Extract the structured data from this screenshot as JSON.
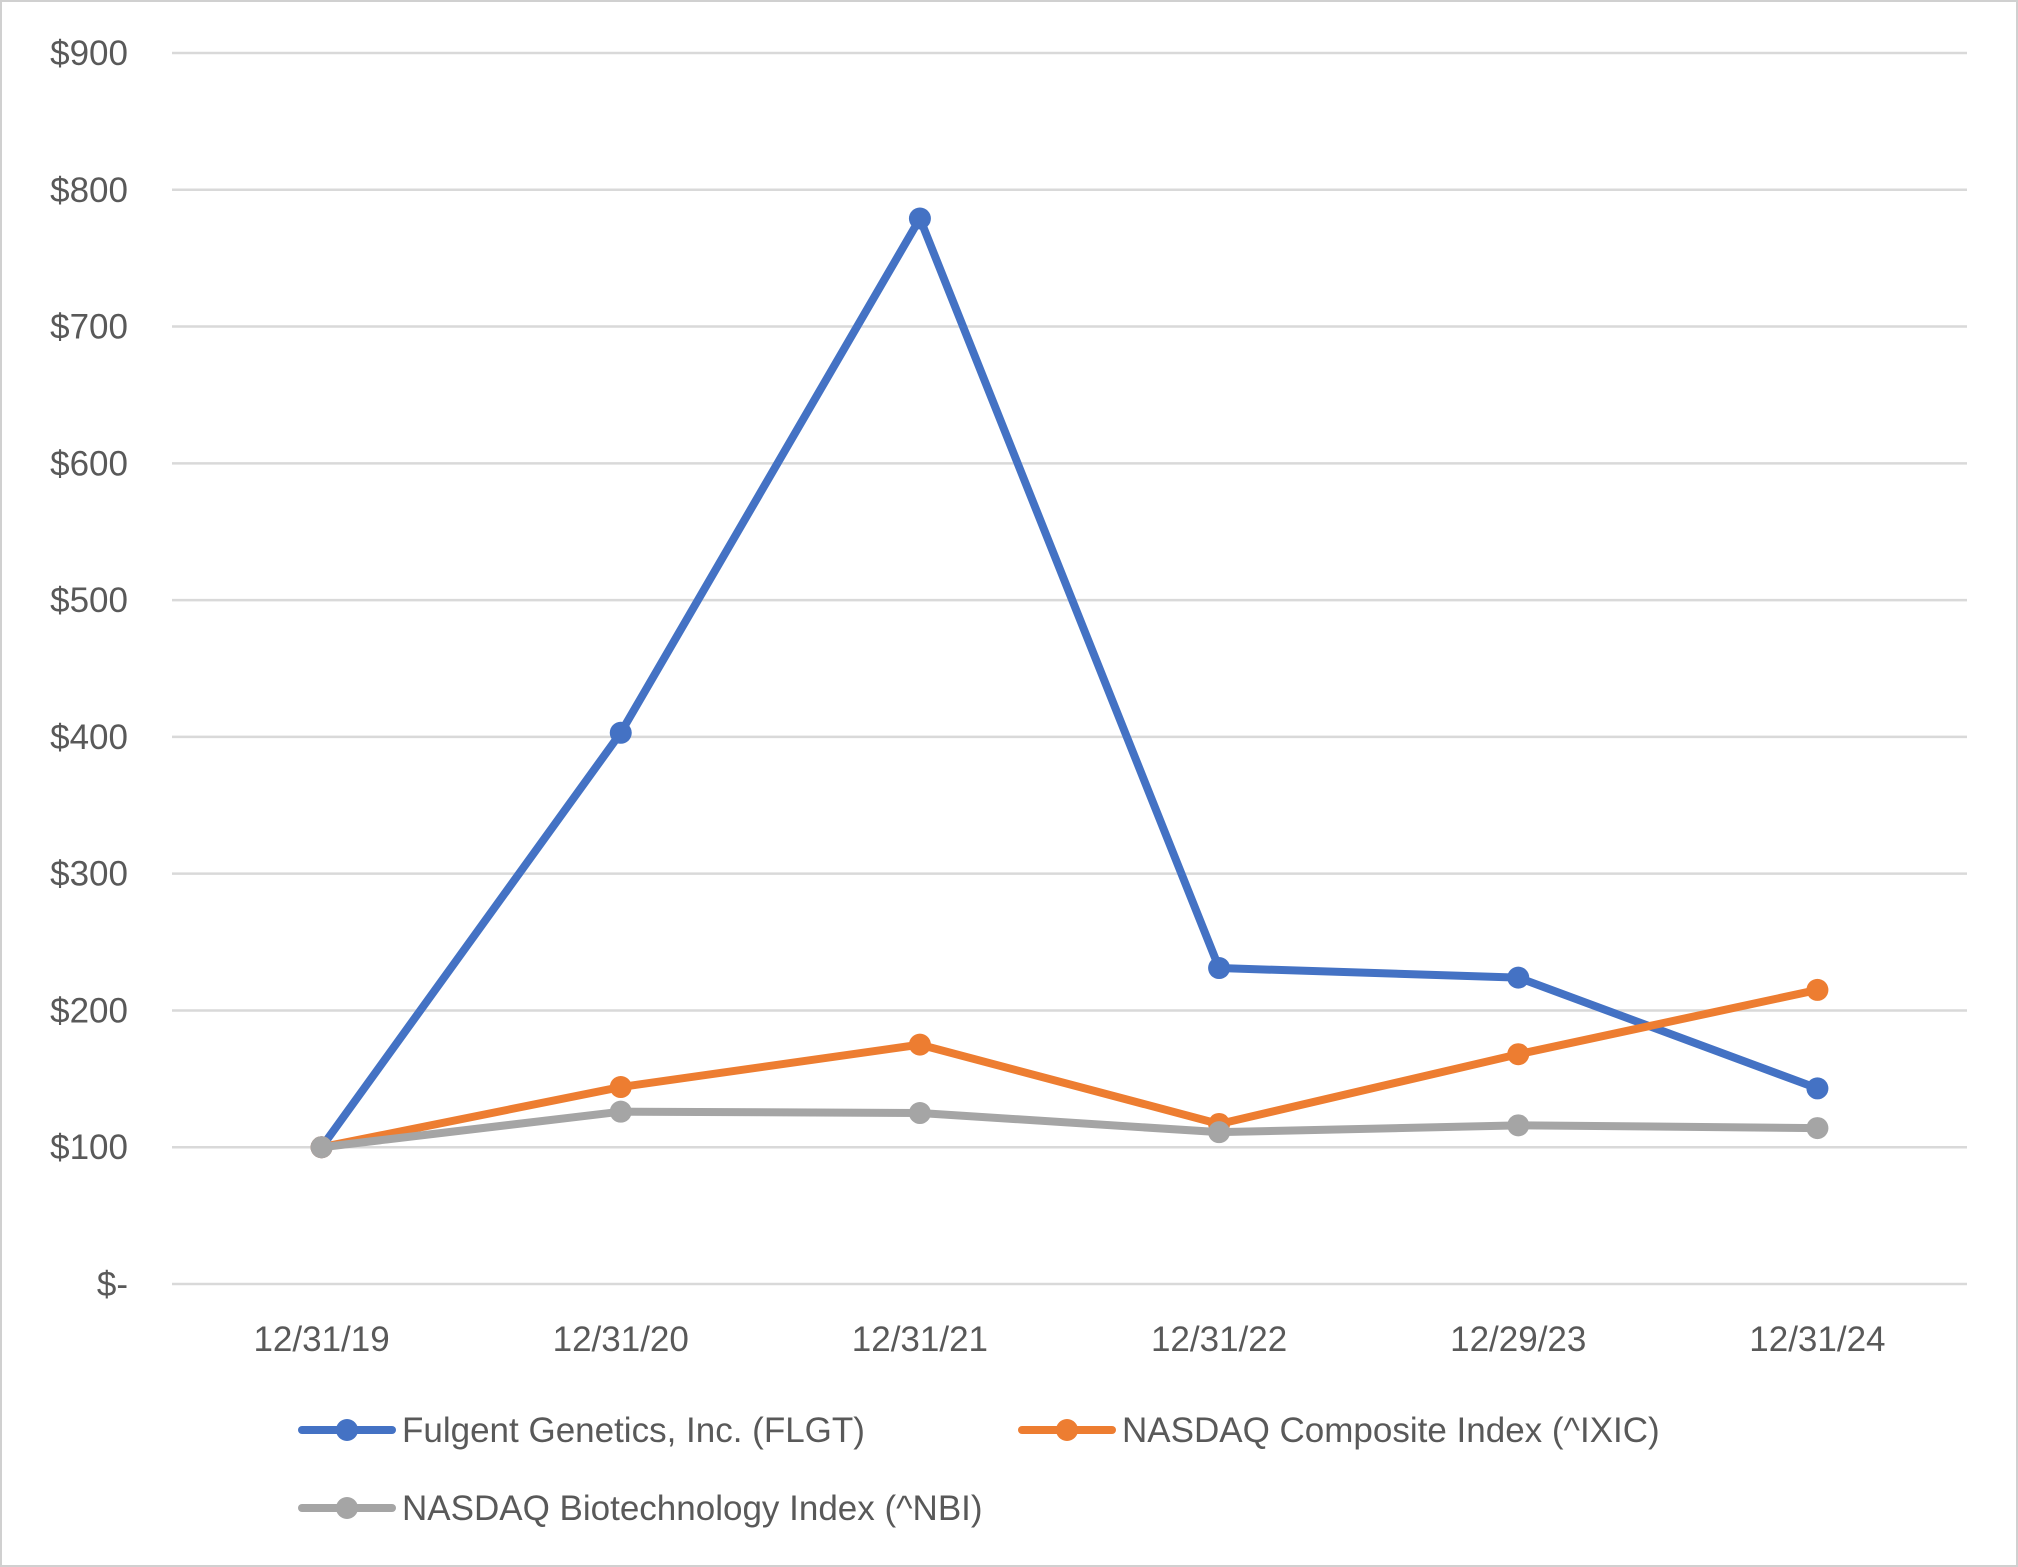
{
  "chart_data": {
    "type": "line",
    "title": "",
    "xlabel": "",
    "ylabel": "",
    "categories": [
      "12/31/19",
      "12/31/20",
      "12/31/21",
      "12/31/22",
      "12/29/23",
      "12/31/24"
    ],
    "y_ticks": [
      {
        "value": 0,
        "label": "$-"
      },
      {
        "value": 100,
        "label": "$100"
      },
      {
        "value": 200,
        "label": "$200"
      },
      {
        "value": 300,
        "label": "$300"
      },
      {
        "value": 400,
        "label": "$400"
      },
      {
        "value": 500,
        "label": "$500"
      },
      {
        "value": 600,
        "label": "$600"
      },
      {
        "value": 700,
        "label": "$700"
      },
      {
        "value": 800,
        "label": "$800"
      },
      {
        "value": 900,
        "label": "$900"
      }
    ],
    "ylim": [
      0,
      900
    ],
    "grid": true,
    "legend_position": "bottom",
    "series": [
      {
        "name": "Fulgent Genetics, Inc. (FLGT)",
        "color": "#4472C4",
        "values": [
          100,
          403,
          779,
          231,
          224,
          143
        ]
      },
      {
        "name": "NASDAQ Composite Index (^IXIC)",
        "color": "#ED7D31",
        "values": [
          100,
          144,
          175,
          117,
          168,
          215
        ]
      },
      {
        "name": "NASDAQ Biotechnology Index (^NBI)",
        "color": "#A5A5A5",
        "values": [
          100,
          126,
          125,
          111,
          116,
          114
        ]
      }
    ]
  }
}
